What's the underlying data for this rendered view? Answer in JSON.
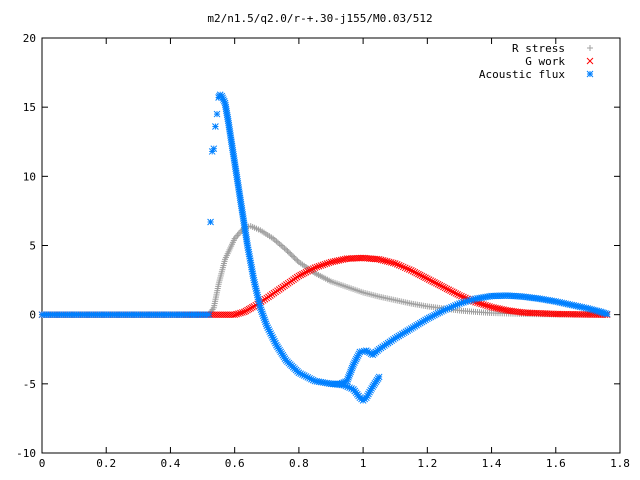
{
  "chart_data": {
    "type": "scatter",
    "title": "m2/n1.5/q2.0/r-+.30-j155/M0.03/512",
    "xlabel": "",
    "ylabel": "",
    "xlim": [
      0,
      1.8
    ],
    "ylim": [
      -10,
      20
    ],
    "xticks": [
      "0",
      "0.2",
      "0.4",
      "0.6",
      "0.8",
      "1",
      "1.2",
      "1.4",
      "1.6",
      "1.8"
    ],
    "yticks": [
      "-10",
      "-5",
      "0",
      "5",
      "10",
      "15",
      "20"
    ],
    "grid": false,
    "legend_position": "top-right",
    "series": [
      {
        "name": "R stress",
        "marker": "+",
        "color": "#a0a0a0",
        "points": [
          [
            0.0,
            0.0
          ],
          [
            0.2,
            0.0
          ],
          [
            0.4,
            0.0
          ],
          [
            0.52,
            0.0
          ],
          [
            0.535,
            0.5
          ],
          [
            0.55,
            2.2
          ],
          [
            0.57,
            4.0
          ],
          [
            0.6,
            5.5
          ],
          [
            0.63,
            6.3
          ],
          [
            0.65,
            6.4
          ],
          [
            0.68,
            6.1
          ],
          [
            0.72,
            5.5
          ],
          [
            0.76,
            4.7
          ],
          [
            0.8,
            3.8
          ],
          [
            0.85,
            3.0
          ],
          [
            0.9,
            2.4
          ],
          [
            0.95,
            2.0
          ],
          [
            1.0,
            1.6
          ],
          [
            1.05,
            1.3
          ],
          [
            1.1,
            1.05
          ],
          [
            1.15,
            0.8
          ],
          [
            1.2,
            0.6
          ],
          [
            1.25,
            0.45
          ],
          [
            1.3,
            0.3
          ],
          [
            1.35,
            0.2
          ],
          [
            1.4,
            0.12
          ],
          [
            1.5,
            0.05
          ],
          [
            1.6,
            0.02
          ],
          [
            1.76,
            0.0
          ]
        ]
      },
      {
        "name": "G work",
        "marker": "x",
        "color": "#ff0000",
        "points": [
          [
            0.0,
            0.0
          ],
          [
            0.2,
            0.0
          ],
          [
            0.4,
            0.0
          ],
          [
            0.53,
            0.0
          ],
          [
            0.6,
            0.0
          ],
          [
            0.63,
            0.2
          ],
          [
            0.66,
            0.6
          ],
          [
            0.7,
            1.2
          ],
          [
            0.75,
            2.0
          ],
          [
            0.8,
            2.8
          ],
          [
            0.85,
            3.4
          ],
          [
            0.9,
            3.8
          ],
          [
            0.95,
            4.05
          ],
          [
            1.0,
            4.1
          ],
          [
            1.05,
            4.0
          ],
          [
            1.1,
            3.7
          ],
          [
            1.15,
            3.2
          ],
          [
            1.2,
            2.6
          ],
          [
            1.25,
            2.0
          ],
          [
            1.3,
            1.4
          ],
          [
            1.35,
            0.9
          ],
          [
            1.4,
            0.55
          ],
          [
            1.45,
            0.3
          ],
          [
            1.5,
            0.15
          ],
          [
            1.6,
            0.05
          ],
          [
            1.7,
            0.01
          ],
          [
            1.76,
            0.0
          ]
        ]
      },
      {
        "name": "Acoustic flux",
        "marker": "*",
        "color": "#0080ff",
        "points": [
          [
            0.0,
            0.0
          ],
          [
            0.2,
            0.0
          ],
          [
            0.4,
            0.0
          ],
          [
            0.52,
            0.0
          ],
          [
            0.525,
            6.7
          ],
          [
            0.53,
            11.8
          ],
          [
            0.535,
            12.0
          ],
          [
            0.54,
            13.6
          ],
          [
            0.545,
            14.5
          ],
          [
            0.55,
            15.7
          ],
          [
            0.555,
            15.9
          ],
          [
            0.56,
            15.8
          ],
          [
            0.57,
            15.3
          ],
          [
            0.58,
            14.0
          ],
          [
            0.6,
            11.0
          ],
          [
            0.62,
            8.0
          ],
          [
            0.64,
            5.0
          ],
          [
            0.66,
            2.5
          ],
          [
            0.68,
            0.5
          ],
          [
            0.7,
            -0.8
          ],
          [
            0.73,
            -2.2
          ],
          [
            0.76,
            -3.3
          ],
          [
            0.8,
            -4.2
          ],
          [
            0.85,
            -4.8
          ],
          [
            0.9,
            -5.0
          ],
          [
            0.93,
            -5.0
          ],
          [
            0.95,
            -4.8
          ],
          [
            0.97,
            -3.6
          ],
          [
            0.99,
            -2.7
          ],
          [
            1.01,
            -2.6
          ],
          [
            1.03,
            -2.9
          ],
          [
            1.05,
            -2.5
          ],
          [
            1.1,
            -1.7
          ],
          [
            1.15,
            -1.0
          ],
          [
            1.2,
            -0.3
          ],
          [
            1.25,
            0.3
          ],
          [
            1.3,
            0.8
          ],
          [
            1.35,
            1.15
          ],
          [
            1.4,
            1.35
          ],
          [
            1.45,
            1.38
          ],
          [
            1.5,
            1.3
          ],
          [
            1.55,
            1.15
          ],
          [
            1.6,
            0.95
          ],
          [
            1.65,
            0.7
          ],
          [
            1.7,
            0.45
          ],
          [
            1.74,
            0.2
          ],
          [
            1.76,
            0.05
          ]
        ],
        "branch_points": [
          [
            0.9,
            -5.0
          ],
          [
            0.94,
            -5.1
          ],
          [
            0.97,
            -5.4
          ],
          [
            0.99,
            -6.0
          ],
          [
            1.0,
            -6.2
          ],
          [
            1.01,
            -6.0
          ],
          [
            1.03,
            -5.2
          ],
          [
            1.05,
            -4.5
          ]
        ]
      }
    ]
  }
}
